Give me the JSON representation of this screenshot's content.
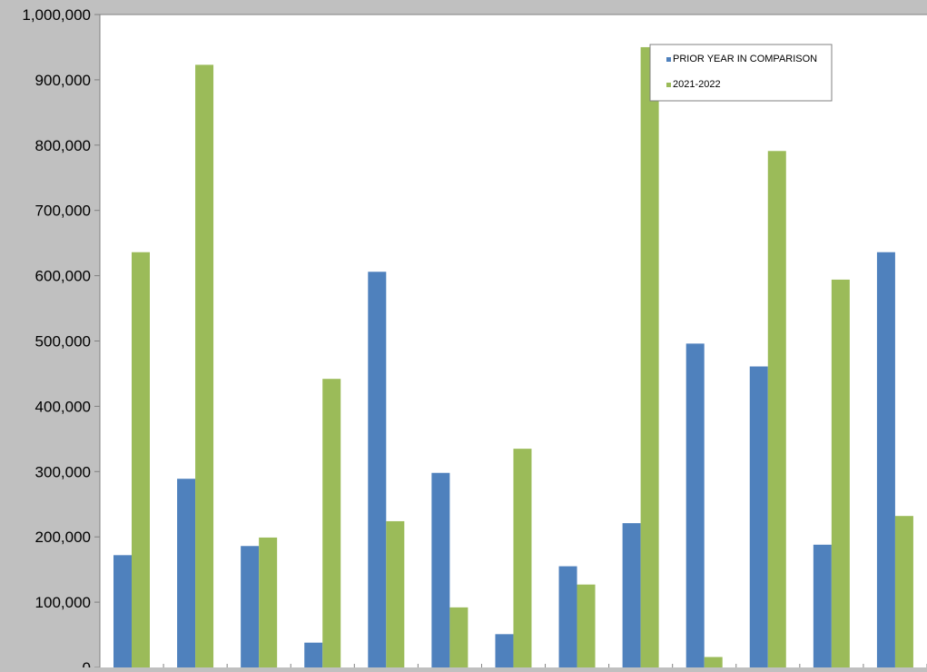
{
  "chart_data": {
    "type": "bar",
    "title": "",
    "xlabel": "",
    "ylabel": "",
    "ylim": [
      0,
      1000000
    ],
    "y_ticks": [
      0,
      100000,
      200000,
      300000,
      400000,
      500000,
      600000,
      700000,
      800000,
      900000,
      1000000
    ],
    "y_tick_labels": [
      "0",
      "100,000",
      "200,000",
      "300,000",
      "400,000",
      "500,000",
      "600,000",
      "700,000",
      "800,000",
      "900,000",
      "1,000,000"
    ],
    "grid": false,
    "legend_position": "top-right",
    "categories": [
      "",
      "",
      "",
      "",
      "",
      "",
      "",
      "",
      "",
      "",
      "",
      "",
      ""
    ],
    "series": [
      {
        "name": "PRIOR YEAR IN COMPARISON",
        "color": "#4f81bd",
        "values": [
          172000,
          289000,
          186000,
          38000,
          606000,
          298000,
          51000,
          155000,
          221000,
          496000,
          461000,
          188000,
          636000
        ]
      },
      {
        "name": "2021-2022",
        "color": "#9bbb59",
        "values": [
          636000,
          923000,
          199000,
          442000,
          224000,
          92000,
          335000,
          127000,
          950000,
          16000,
          791000,
          594000,
          232000
        ]
      }
    ]
  }
}
